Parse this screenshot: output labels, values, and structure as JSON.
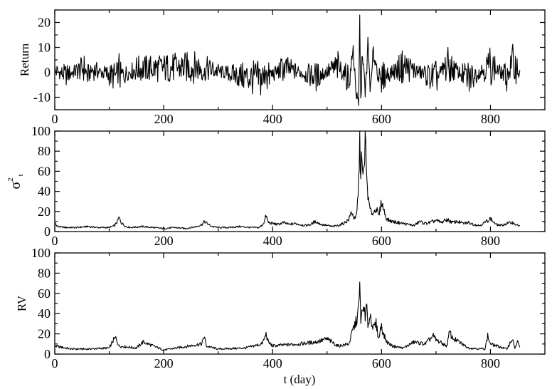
{
  "figure": {
    "xlabel": "t (day)"
  },
  "chart_data": [
    {
      "type": "line",
      "id": "return",
      "ylabel": "Return",
      "xlim": [
        0,
        900
      ],
      "ylim": [
        -15,
        25
      ],
      "x_ticks": [
        0,
        200,
        400,
        600,
        800
      ],
      "y_ticks": [
        -10,
        0,
        10,
        20
      ],
      "x_tick_labels": [
        "0",
        "200",
        "400",
        "600",
        "800"
      ],
      "y_tick_labels": [
        "-10",
        "0",
        "10",
        "20"
      ],
      "n_points": 855,
      "series": [
        {
          "x": [
            0,
            20,
            55,
            60,
            70,
            115,
            118,
            120,
            150,
            270,
            275,
            278,
            355,
            385,
            388,
            390,
            420,
            480,
            520,
            540,
            548,
            555,
            558,
            560,
            562,
            565,
            570,
            575,
            580,
            585,
            600,
            640,
            700,
            720,
            760,
            800,
            830,
            840,
            850,
            855
          ],
          "y": [
            2,
            -3,
            5,
            -4,
            3,
            -6,
            6,
            -5,
            4,
            6,
            -5,
            4,
            -6,
            -8,
            6,
            -6,
            5,
            -5,
            6,
            -7,
            9,
            -12,
            -14,
            21,
            -13,
            10,
            -10,
            11,
            -8,
            8,
            -6,
            7,
            -7,
            8,
            -7,
            8,
            -5,
            9,
            5,
            -2
          ]
        }
      ]
    },
    {
      "type": "line",
      "id": "sigma",
      "ylabel": "σ",
      "ylabel_sup": "2",
      "ylabel_sub": "t",
      "xlim": [
        0,
        900
      ],
      "ylim": [
        0,
        100
      ],
      "x_ticks": [
        0,
        200,
        400,
        600,
        800
      ],
      "y_ticks": [
        0,
        20,
        40,
        60,
        80,
        100
      ],
      "x_tick_labels": [
        "0",
        "200",
        "400",
        "600",
        "800"
      ],
      "y_tick_labels": [
        "0",
        "20",
        "40",
        "60",
        "80",
        "100"
      ],
      "series": [
        {
          "x": [
            0,
            5,
            20,
            40,
            60,
            80,
            100,
            110,
            115,
            118,
            122,
            130,
            140,
            160,
            180,
            200,
            220,
            240,
            260,
            270,
            275,
            280,
            285,
            290,
            300,
            320,
            340,
            360,
            375,
            380,
            385,
            388,
            392,
            400,
            410,
            420,
            430,
            440,
            450,
            460,
            470,
            475,
            480,
            485,
            490,
            500,
            510,
            520,
            530,
            540,
            545,
            548,
            552,
            555,
            558,
            560,
            562,
            563,
            565,
            568,
            570,
            572,
            574,
            576,
            580,
            585,
            590,
            595,
            600,
            605,
            610,
            620,
            630,
            640,
            650,
            660,
            670,
            680,
            690,
            700,
            710,
            720,
            730,
            740,
            750,
            760,
            770,
            780,
            790,
            800,
            805,
            810,
            820,
            830,
            840,
            850,
            855
          ],
          "y": [
            9,
            5,
            4,
            4,
            5,
            4,
            4,
            6,
            10,
            14,
            9,
            5,
            4,
            5,
            4,
            3,
            4,
            3,
            5,
            7,
            10,
            8,
            6,
            5,
            4,
            4,
            5,
            4,
            4,
            6,
            10,
            16,
            9,
            8,
            7,
            9,
            7,
            8,
            7,
            6,
            7,
            9,
            10,
            8,
            7,
            6,
            5,
            6,
            8,
            12,
            20,
            15,
            12,
            20,
            50,
            86,
            60,
            75,
            55,
            60,
            98,
            62,
            45,
            30,
            20,
            18,
            24,
            15,
            30,
            20,
            12,
            10,
            9,
            8,
            7,
            6,
            10,
            8,
            9,
            11,
            9,
            12,
            9,
            10,
            8,
            9,
            7,
            6,
            9,
            13,
            10,
            7,
            6,
            8,
            9,
            6,
            6
          ]
        }
      ]
    },
    {
      "type": "line",
      "id": "rv",
      "ylabel": "RV",
      "xlim": [
        0,
        900
      ],
      "ylim": [
        0,
        100
      ],
      "x_ticks": [
        0,
        200,
        400,
        600,
        800
      ],
      "y_ticks": [
        0,
        20,
        40,
        60,
        80,
        100
      ],
      "x_tick_labels": [
        "0",
        "200",
        "400",
        "600",
        "800"
      ],
      "y_tick_labels": [
        "0",
        "20",
        "40",
        "60",
        "80",
        "100"
      ],
      "n_points": 855,
      "series": [
        {
          "x": [
            0,
            10,
            30,
            60,
            100,
            108,
            112,
            118,
            150,
            162,
            200,
            270,
            275,
            278,
            300,
            350,
            380,
            385,
            388,
            392,
            400,
            420,
            450,
            480,
            500,
            520,
            540,
            548,
            552,
            555,
            558,
            560,
            562,
            565,
            568,
            570,
            572,
            575,
            580,
            585,
            590,
            595,
            600,
            603,
            610,
            620,
            640,
            660,
            680,
            695,
            700,
            720,
            725,
            730,
            760,
            790,
            795,
            800,
            830,
            840,
            845,
            850,
            855
          ],
          "y": [
            8,
            7,
            5,
            5,
            6,
            14,
            16,
            8,
            6,
            12,
            4,
            10,
            18,
            8,
            5,
            6,
            10,
            15,
            20,
            12,
            8,
            9,
            10,
            12,
            15,
            8,
            10,
            25,
            30,
            35,
            45,
            65,
            35,
            40,
            50,
            30,
            48,
            30,
            38,
            25,
            30,
            15,
            30,
            20,
            12,
            8,
            6,
            12,
            10,
            18,
            14,
            8,
            22,
            16,
            6,
            5,
            18,
            10,
            5,
            15,
            6,
            12,
            5
          ]
        }
      ]
    }
  ]
}
